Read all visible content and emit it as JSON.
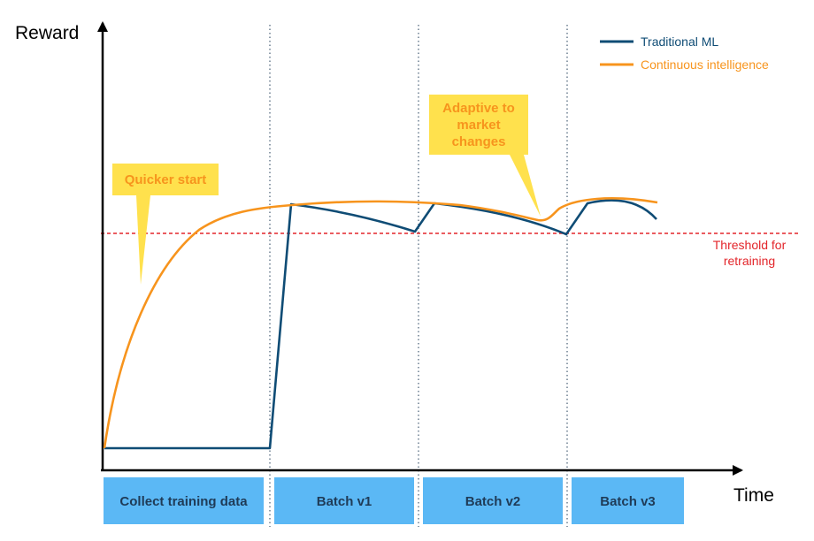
{
  "axes": {
    "y_label": "Reward",
    "x_label": "Time"
  },
  "legend": {
    "traditional": "Traditional ML",
    "continuous": "Continuous intelligence"
  },
  "callouts": {
    "quicker_start": "Quicker start",
    "adaptive_lines": [
      "Adaptive to",
      "market",
      "changes"
    ]
  },
  "threshold": {
    "lines": [
      "Threshold for",
      "retraining"
    ]
  },
  "phases": [
    "Collect training data",
    "Batch v1",
    "Batch v2",
    "Batch v3"
  ],
  "colors": {
    "traditional": "#0f4c75",
    "continuous": "#f7941d",
    "threshold": "#e3262b",
    "callout_fill": "#ffe14d",
    "phase_fill": "#5bb8f5",
    "phase_text": "#1f3b57"
  }
}
